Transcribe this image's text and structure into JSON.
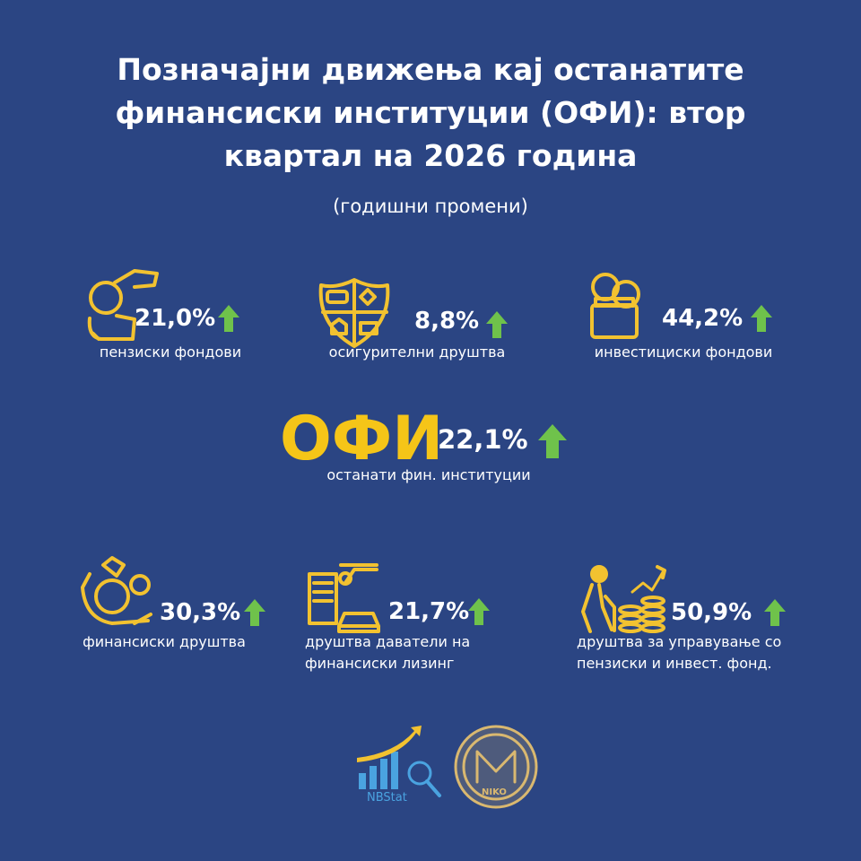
{
  "header": {
    "title_lines": [
      "Позначајни движења кај останатите",
      "финансиски институции (ОФИ): втор",
      "квартал на 2026 година"
    ],
    "subtitle": "(годишни промени)"
  },
  "top_items": [
    {
      "value": "21,0%",
      "label_lines": [
        "пензиски фондови"
      ]
    },
    {
      "value": "8,8%",
      "label_lines": [
        "осигурителни друштва"
      ]
    },
    {
      "value": "44,2%",
      "label_lines": [
        "инвестициски фондови"
      ]
    }
  ],
  "center": {
    "acronym": "ОФИ",
    "value": "22,1%",
    "label_lines": [
      "останати фин. институции"
    ]
  },
  "bottom_items": [
    {
      "value": "30,3%",
      "label_lines": [
        "финансиски друштва"
      ]
    },
    {
      "value": "21,7%",
      "label_lines": [
        "друштва даватели на",
        "финансиски лизинг"
      ]
    },
    {
      "value": "50,9%",
      "label_lines": [
        "друштва за управување со",
        "пензиски и инвест. фонд."
      ]
    }
  ],
  "logos": {
    "nbstat": "NBStat",
    "seal": "NIKO"
  }
}
